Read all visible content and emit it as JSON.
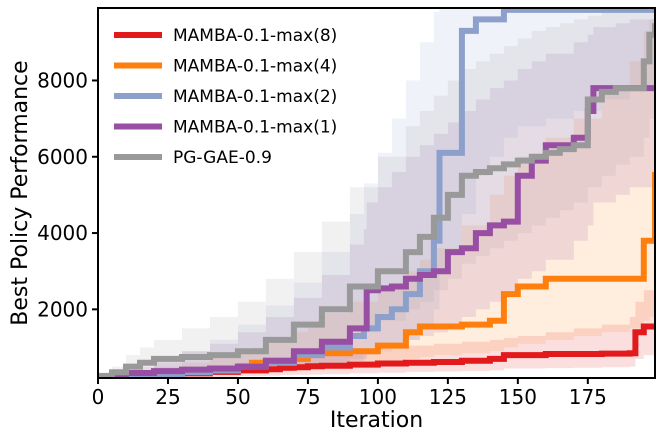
{
  "chart_data": {
    "type": "line",
    "title": "",
    "xlabel": "Iteration",
    "ylabel": "Best Policy Performance",
    "xlim": [
      0,
      199
    ],
    "ylim": [
      200,
      9900
    ],
    "xticks": [
      0,
      25,
      50,
      75,
      100,
      125,
      150,
      175
    ],
    "yticks": [
      2000,
      4000,
      6000,
      8000
    ],
    "legend_position": "top-left",
    "grid": false,
    "series": [
      {
        "name": "MAMBA-0.1-max(8)",
        "color": "#e31a1c",
        "x": [
          0,
          10,
          20,
          30,
          40,
          50,
          60,
          65,
          70,
          75,
          80,
          90,
          100,
          110,
          120,
          130,
          140,
          145,
          150,
          160,
          170,
          180,
          190,
          192,
          195,
          199
        ],
        "y": [
          230,
          260,
          290,
          320,
          360,
          400,
          430,
          470,
          480,
          510,
          520,
          550,
          580,
          600,
          620,
          650,
          700,
          800,
          800,
          830,
          830,
          840,
          850,
          1400,
          1550,
          1550
        ],
        "band_low": [
          200,
          200,
          200,
          200,
          220,
          250,
          260,
          270,
          280,
          290,
          300,
          320,
          340,
          360,
          370,
          380,
          400,
          450,
          450,
          460,
          470,
          480,
          500,
          700,
          800,
          800
        ],
        "band_high": [
          260,
          320,
          380,
          450,
          520,
          600,
          650,
          700,
          800,
          850,
          900,
          950,
          1000,
          1050,
          1100,
          1150,
          1200,
          1250,
          1300,
          1400,
          1500,
          1600,
          1800,
          2200,
          2500,
          2600
        ]
      },
      {
        "name": "MAMBA-0.1-max(4)",
        "color": "#ff7f0e",
        "x": [
          0,
          10,
          20,
          30,
          40,
          50,
          55,
          60,
          70,
          75,
          80,
          90,
          100,
          110,
          115,
          120,
          130,
          140,
          145,
          150,
          160,
          170,
          180,
          190,
          195,
          197,
          199
        ],
        "y": [
          250,
          280,
          320,
          360,
          400,
          500,
          600,
          650,
          700,
          800,
          850,
          900,
          1050,
          1400,
          1550,
          1550,
          1600,
          1700,
          2400,
          2600,
          2800,
          2800,
          2800,
          2800,
          3800,
          3800,
          5600
        ],
        "band_low": [
          200,
          200,
          230,
          260,
          300,
          350,
          400,
          420,
          450,
          480,
          500,
          550,
          600,
          700,
          750,
          800,
          850,
          900,
          1000,
          1100,
          1200,
          1300,
          1400,
          1500,
          1700,
          1800,
          2200
        ],
        "band_high": [
          320,
          400,
          500,
          600,
          750,
          900,
          1000,
          1200,
          1400,
          1600,
          1900,
          2200,
          2600,
          3000,
          3300,
          3600,
          4200,
          5000,
          5500,
          6000,
          6500,
          7000,
          7800,
          8500,
          9300,
          9600,
          9800
        ]
      },
      {
        "name": "MAMBA-0.1-max(2)",
        "color": "#8da0cb",
        "x": [
          0,
          10,
          20,
          30,
          40,
          50,
          60,
          70,
          80,
          90,
          95,
          100,
          105,
          110,
          115,
          120,
          122,
          125,
          130,
          135,
          140,
          145,
          150,
          160,
          170,
          180,
          190,
          199
        ],
        "y": [
          220,
          260,
          300,
          350,
          400,
          500,
          600,
          800,
          1000,
          1300,
          1500,
          1800,
          2000,
          2400,
          3000,
          3800,
          6100,
          6100,
          9300,
          9600,
          9600,
          9850,
          9850,
          9850,
          9850,
          9850,
          9850,
          9850
        ],
        "band_low": [
          200,
          200,
          220,
          250,
          280,
          320,
          380,
          450,
          550,
          700,
          800,
          900,
          1000,
          1200,
          1500,
          2000,
          3000,
          3500,
          4500,
          5500,
          6000,
          6500,
          6800,
          7000,
          7200,
          7500,
          7800,
          8000
        ],
        "band_high": [
          300,
          400,
          600,
          900,
          1200,
          1600,
          2100,
          2700,
          3500,
          4500,
          5300,
          6100,
          7000,
          8000,
          9000,
          9800,
          9900,
          9900,
          9900,
          9900,
          9900,
          9900,
          9900,
          9900,
          9900,
          9900,
          9900,
          9900
        ]
      },
      {
        "name": "MAMBA-0.1-max(1)",
        "color": "#984ea3",
        "x": [
          0,
          5,
          10,
          20,
          30,
          40,
          50,
          60,
          70,
          80,
          90,
          95,
          96,
          100,
          105,
          110,
          115,
          120,
          125,
          130,
          135,
          140,
          145,
          150,
          155,
          160,
          170,
          175,
          177,
          185,
          190,
          199
        ],
        "y": [
          230,
          280,
          330,
          380,
          420,
          450,
          500,
          650,
          900,
          1150,
          1500,
          1500,
          2500,
          2550,
          2600,
          2800,
          2900,
          3000,
          3500,
          3600,
          4000,
          4200,
          4300,
          5500,
          5900,
          6300,
          6500,
          7200,
          7800,
          7800,
          7800,
          7800
        ],
        "band_low": [
          200,
          200,
          220,
          250,
          280,
          300,
          320,
          380,
          450,
          520,
          650,
          700,
          900,
          1000,
          1100,
          1200,
          1300,
          1400,
          1600,
          1800,
          2000,
          2200,
          2400,
          2800,
          3000,
          3300,
          3800,
          4200,
          4800,
          5000,
          5200,
          5400
        ],
        "band_high": [
          300,
          400,
          500,
          700,
          900,
          1100,
          1400,
          1800,
          2300,
          2900,
          3700,
          4100,
          4800,
          5200,
          5600,
          6000,
          6300,
          6600,
          6900,
          7200,
          7500,
          7800,
          8000,
          8300,
          8500,
          8700,
          9000,
          9200,
          9400,
          9500,
          9600,
          9700
        ]
      },
      {
        "name": "PG-GAE-0.9",
        "color": "#999999",
        "x": [
          0,
          5,
          10,
          15,
          20,
          30,
          40,
          50,
          60,
          70,
          80,
          90,
          100,
          110,
          115,
          120,
          125,
          130,
          135,
          140,
          145,
          150,
          155,
          160,
          165,
          170,
          175,
          180,
          185,
          190,
          195,
          197,
          199
        ],
        "y": [
          250,
          350,
          500,
          600,
          700,
          750,
          800,
          900,
          1200,
          1600,
          2000,
          2600,
          3000,
          3500,
          3900,
          4400,
          5000,
          5500,
          5600,
          5700,
          5800,
          5900,
          6000,
          6100,
          6200,
          6300,
          7500,
          7700,
          7800,
          7800,
          8500,
          9200,
          9500
        ],
        "band_low": [
          200,
          220,
          280,
          320,
          360,
          420,
          480,
          550,
          700,
          900,
          1100,
          1400,
          1700,
          2000,
          2200,
          2500,
          2800,
          3200,
          3400,
          3600,
          3800,
          4000,
          4200,
          4400,
          4600,
          4800,
          5200,
          5500,
          5800,
          6000,
          6500,
          7000,
          7400
        ],
        "band_high": [
          350,
          500,
          800,
          1000,
          1200,
          1500,
          1800,
          2200,
          2800,
          3500,
          4300,
          5200,
          6000,
          6800,
          7200,
          7600,
          8000,
          8300,
          8500,
          8700,
          8900,
          9100,
          9300,
          9400,
          9500,
          9600,
          9700,
          9800,
          9850,
          9900,
          9900,
          9900,
          9900
        ]
      }
    ]
  }
}
